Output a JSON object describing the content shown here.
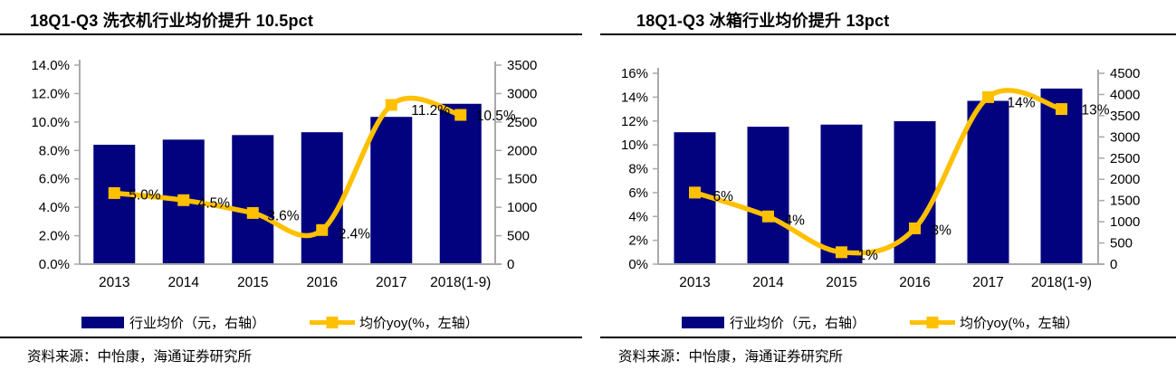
{
  "colors": {
    "bar": "#02027E",
    "line": "#FFC000",
    "axis": "#A9A9A9",
    "text": "#000000"
  },
  "charts": [
    {
      "title": "18Q1-Q3 洗衣机行业均价提升 10.5pct",
      "source": "资料来源：中怡康，海通证券研究所"
    },
    {
      "title": "18Q1-Q3 冰箱行业均价提升 13pct",
      "source": "资料来源：中怡康，海通证券研究所"
    }
  ],
  "chart_data": [
    {
      "type": "bar+line",
      "title": "18Q1-Q3 洗衣机行业均价提升 10.5pct",
      "categories": [
        "2013",
        "2014",
        "2015",
        "2016",
        "2017",
        "2018(1-9)"
      ],
      "series": [
        {
          "name": "行业均价（元，右轴）",
          "type": "bar",
          "axis": "right",
          "values": [
            2100,
            2190,
            2270,
            2320,
            2590,
            2820
          ]
        },
        {
          "name": "均价yoy(%，左轴）",
          "type": "line",
          "axis": "left",
          "values": [
            5.0,
            4.5,
            3.6,
            2.4,
            11.2,
            10.5
          ],
          "point_labels": [
            "5.0%",
            "4.5%",
            "3.6%",
            "2.4%",
            "11.2%",
            "10.5%"
          ]
        }
      ],
      "left_axis": {
        "min": 0,
        "max": 14,
        "step": 2,
        "ticks": [
          "0.0%",
          "2.0%",
          "4.0%",
          "6.0%",
          "8.0%",
          "10.0%",
          "12.0%",
          "14.0%"
        ]
      },
      "right_axis": {
        "min": 0,
        "max": 3500,
        "step": 500,
        "ticks": [
          "0",
          "500",
          "1000",
          "1500",
          "2000",
          "2500",
          "3000",
          "3500"
        ]
      },
      "grid": false,
      "legend_position": "bottom"
    },
    {
      "type": "bar+line",
      "title": "18Q1-Q3 冰箱行业均价提升 13pct",
      "categories": [
        "2013",
        "2014",
        "2015",
        "2016",
        "2017",
        "2018(1-9)"
      ],
      "series": [
        {
          "name": "行业均价（元，右轴）",
          "type": "bar",
          "axis": "right",
          "values": [
            3110,
            3240,
            3290,
            3370,
            3850,
            4140
          ]
        },
        {
          "name": "均价yoy(%，左轴）",
          "type": "line",
          "axis": "left",
          "values": [
            6,
            4,
            1,
            3,
            14,
            13
          ],
          "point_labels": [
            "6%",
            "4%",
            "1%",
            "3%",
            "14%",
            "13%"
          ]
        }
      ],
      "left_axis": {
        "min": 0,
        "max": 16,
        "step": 2,
        "ticks": [
          "0%",
          "2%",
          "4%",
          "6%",
          "8%",
          "10%",
          "12%",
          "14%",
          "16%"
        ]
      },
      "right_axis": {
        "min": 0,
        "max": 4500,
        "step": 500,
        "ticks": [
          "0",
          "500",
          "1000",
          "1500",
          "2000",
          "2500",
          "3000",
          "3500",
          "4000",
          "4500"
        ]
      },
      "grid": false,
      "legend_position": "bottom"
    }
  ]
}
